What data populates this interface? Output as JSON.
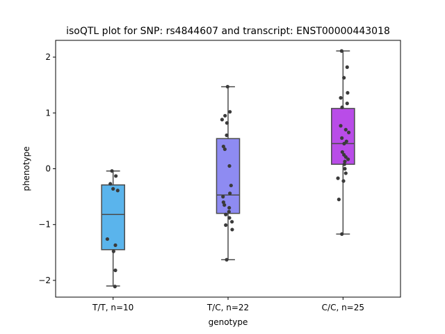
{
  "chart_data": {
    "type": "box",
    "title": "isoQTL plot for SNP: rs4844607 and transcript: ENST00000443018",
    "xlabel": "genotype",
    "ylabel": "phenotype",
    "ylim": [
      -2.3,
      2.3
    ],
    "yticks": [
      -2,
      -1,
      0,
      1,
      2
    ],
    "ytick_labels": [
      "−2",
      "−1",
      "0",
      "1",
      "2"
    ],
    "grid": false,
    "categories": [
      "T/T, n=10",
      "T/C, n=22",
      "C/C, n=25"
    ],
    "boxes": [
      {
        "label": "T/T, n=10",
        "color": "#5ab4ec",
        "whisker_low": -2.1,
        "q1": -1.45,
        "median": -0.82,
        "q3": -0.29,
        "whisker_high": -0.04,
        "points": [
          {
            "dx": -0.05,
            "y": -0.04
          },
          {
            "dx": 0.12,
            "y": -0.13
          },
          {
            "dx": -0.12,
            "y": -0.27
          },
          {
            "dx": 0.0,
            "y": -0.36
          },
          {
            "dx": 0.2,
            "y": -0.39
          },
          {
            "dx": -0.25,
            "y": -1.26
          },
          {
            "dx": 0.1,
            "y": -1.37
          },
          {
            "dx": 0.02,
            "y": -1.48
          },
          {
            "dx": 0.1,
            "y": -1.82
          },
          {
            "dx": 0.08,
            "y": -2.11
          }
        ]
      },
      {
        "label": "T/C, n=22",
        "color": "#8e8bf2",
        "whisker_low": -1.63,
        "q1": -0.8,
        "median": -0.47,
        "q3": 0.54,
        "whisker_high": 1.47,
        "points": [
          {
            "dx": -0.02,
            "y": 1.47
          },
          {
            "dx": 0.08,
            "y": 1.02
          },
          {
            "dx": -0.13,
            "y": 0.95
          },
          {
            "dx": -0.26,
            "y": 0.88
          },
          {
            "dx": -0.05,
            "y": 0.82
          },
          {
            "dx": -0.06,
            "y": 0.6
          },
          {
            "dx": -0.2,
            "y": 0.4
          },
          {
            "dx": -0.14,
            "y": 0.35
          },
          {
            "dx": 0.06,
            "y": 0.05
          },
          {
            "dx": 0.13,
            "y": -0.3
          },
          {
            "dx": 0.08,
            "y": -0.44
          },
          {
            "dx": -0.22,
            "y": -0.5
          },
          {
            "dx": -0.2,
            "y": -0.6
          },
          {
            "dx": -0.16,
            "y": -0.65
          },
          {
            "dx": 0.05,
            "y": -0.7
          },
          {
            "dx": 0.04,
            "y": -0.77
          },
          {
            "dx": -0.1,
            "y": -0.82
          },
          {
            "dx": 0.06,
            "y": -0.88
          },
          {
            "dx": 0.17,
            "y": -0.95
          },
          {
            "dx": -0.1,
            "y": -1.01
          },
          {
            "dx": 0.18,
            "y": -1.09
          },
          {
            "dx": -0.06,
            "y": -1.63
          }
        ]
      },
      {
        "label": "C/C, n=25",
        "color": "#b94ce8",
        "whisker_low": -1.17,
        "q1": 0.08,
        "median": 0.45,
        "q3": 1.08,
        "whisker_high": 2.11,
        "points": [
          {
            "dx": -0.06,
            "y": 2.11
          },
          {
            "dx": 0.18,
            "y": 1.82
          },
          {
            "dx": 0.04,
            "y": 1.63
          },
          {
            "dx": 0.2,
            "y": 1.36
          },
          {
            "dx": -0.1,
            "y": 1.27
          },
          {
            "dx": 0.18,
            "y": 1.17
          },
          {
            "dx": -0.04,
            "y": 1.1
          },
          {
            "dx": -0.1,
            "y": 0.77
          },
          {
            "dx": 0.12,
            "y": 0.7
          },
          {
            "dx": 0.25,
            "y": 0.65
          },
          {
            "dx": -0.05,
            "y": 0.55
          },
          {
            "dx": 0.15,
            "y": 0.49
          },
          {
            "dx": 0.05,
            "y": 0.45
          },
          {
            "dx": -0.03,
            "y": 0.3
          },
          {
            "dx": 0.04,
            "y": 0.25
          },
          {
            "dx": 0.12,
            "y": 0.21
          },
          {
            "dx": 0.22,
            "y": 0.17
          },
          {
            "dx": 0.08,
            "y": 0.13
          },
          {
            "dx": 0.06,
            "y": 0.08
          },
          {
            "dx": 0.08,
            "y": 0.0
          },
          {
            "dx": 0.12,
            "y": -0.08
          },
          {
            "dx": -0.22,
            "y": -0.17
          },
          {
            "dx": 0.02,
            "y": -0.22
          },
          {
            "dx": -0.18,
            "y": -0.55
          },
          {
            "dx": -0.05,
            "y": -1.17
          }
        ]
      }
    ]
  },
  "colors": {
    "point": "#3a3a3a",
    "box_edge": "#4a4a4a",
    "axis": "#000000"
  }
}
